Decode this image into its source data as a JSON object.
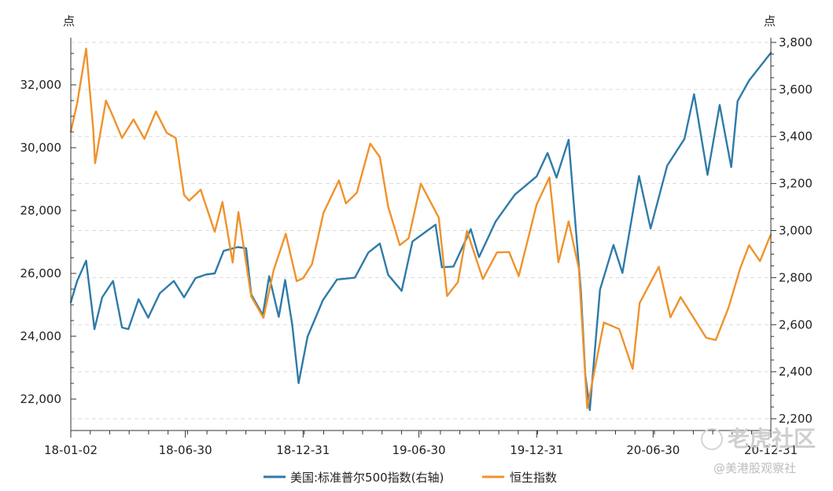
{
  "chart_data": {
    "type": "line",
    "left_axis": {
      "unit": "点",
      "ylim": [
        21000,
        33500
      ],
      "ticks": [
        22000,
        24000,
        26000,
        28000,
        30000,
        32000
      ],
      "tick_labels": [
        "22,000",
        "24,000",
        "26,000",
        "28,000",
        "30,000",
        "32,000"
      ]
    },
    "right_axis": {
      "unit": "点",
      "ylim": [
        2150,
        3820
      ],
      "ticks": [
        2200,
        2400,
        2600,
        2800,
        3000,
        3200,
        3400,
        3600,
        3800
      ],
      "tick_labels": [
        "2,200",
        "2,400",
        "2,600",
        "2,800",
        "3,000",
        "3,200",
        "3,400",
        "3,600",
        "3,800"
      ]
    },
    "x_axis": {
      "range": [
        "2018-01-02",
        "2020-12-31"
      ],
      "ticks": [
        "2018-01-02",
        "2018-06-30",
        "2018-12-31",
        "2019-06-30",
        "2019-12-31",
        "2020-06-30",
        "2020-12-31"
      ],
      "tick_labels": [
        "18-01-02",
        "18-06-30",
        "18-12-31",
        "19-06-30",
        "19-12-31",
        "20-06-30",
        "20-12-31"
      ]
    },
    "grid": "horizontal dashed",
    "legend_position": "bottom",
    "series": [
      {
        "name": "美国:标准普尔500指数(右轴)",
        "axis": "right",
        "color": "#2e7ba8",
        "points": [
          [
            "2018-01-02",
            2695
          ],
          [
            "2018-01-12",
            2786
          ],
          [
            "2018-01-26",
            2872
          ],
          [
            "2018-02-08",
            2581
          ],
          [
            "2018-02-20",
            2716
          ],
          [
            "2018-03-09",
            2786
          ],
          [
            "2018-03-23",
            2588
          ],
          [
            "2018-04-02",
            2581
          ],
          [
            "2018-04-18",
            2708
          ],
          [
            "2018-05-03",
            2630
          ],
          [
            "2018-05-21",
            2733
          ],
          [
            "2018-06-12",
            2786
          ],
          [
            "2018-06-28",
            2716
          ],
          [
            "2018-07-16",
            2798
          ],
          [
            "2018-08-01",
            2813
          ],
          [
            "2018-08-15",
            2818
          ],
          [
            "2018-08-29",
            2914
          ],
          [
            "2018-09-20",
            2930
          ],
          [
            "2018-10-03",
            2925
          ],
          [
            "2018-10-11",
            2728
          ],
          [
            "2018-10-29",
            2641
          ],
          [
            "2018-11-08",
            2806
          ],
          [
            "2018-11-23",
            2633
          ],
          [
            "2018-12-03",
            2790
          ],
          [
            "2018-12-14",
            2600
          ],
          [
            "2018-12-24",
            2351
          ],
          [
            "2019-01-07",
            2549
          ],
          [
            "2019-01-31",
            2704
          ],
          [
            "2019-02-22",
            2792
          ],
          [
            "2019-03-22",
            2800
          ],
          [
            "2019-04-12",
            2907
          ],
          [
            "2019-04-30",
            2945
          ],
          [
            "2019-05-13",
            2812
          ],
          [
            "2019-06-03",
            2744
          ],
          [
            "2019-06-20",
            2954
          ],
          [
            "2019-07-26",
            3025
          ],
          [
            "2019-08-05",
            2844
          ],
          [
            "2019-08-23",
            2847
          ],
          [
            "2019-09-19",
            3006
          ],
          [
            "2019-10-02",
            2887
          ],
          [
            "2019-10-28",
            3039
          ],
          [
            "2019-11-27",
            3153
          ],
          [
            "2019-12-31",
            3230
          ],
          [
            "2020-01-17",
            3330
          ],
          [
            "2020-01-31",
            3225
          ],
          [
            "2020-02-19",
            3386
          ],
          [
            "2020-03-09",
            2746
          ],
          [
            "2020-03-16",
            2386
          ],
          [
            "2020-03-23",
            2237
          ],
          [
            "2020-04-08",
            2749
          ],
          [
            "2020-04-29",
            2939
          ],
          [
            "2020-05-13",
            2820
          ],
          [
            "2020-06-08",
            3232
          ],
          [
            "2020-06-26",
            3009
          ],
          [
            "2020-07-22",
            3276
          ],
          [
            "2020-08-18",
            3390
          ],
          [
            "2020-09-02",
            3580
          ],
          [
            "2020-09-23",
            3237
          ],
          [
            "2020-10-12",
            3534
          ],
          [
            "2020-10-30",
            3270
          ],
          [
            "2020-11-09",
            3550
          ],
          [
            "2020-11-27",
            3638
          ],
          [
            "2020-12-31",
            3756
          ]
        ]
      },
      {
        "name": "恒生指数",
        "axis": "left",
        "color": "#f0922b",
        "points": [
          [
            "2018-01-02",
            30515
          ],
          [
            "2018-01-12",
            31412
          ],
          [
            "2018-01-26",
            33154
          ],
          [
            "2018-02-06",
            30595
          ],
          [
            "2018-02-09",
            29507
          ],
          [
            "2018-02-26",
            31499
          ],
          [
            "2018-03-09",
            30996
          ],
          [
            "2018-03-23",
            30309
          ],
          [
            "2018-04-10",
            30899
          ],
          [
            "2018-04-27",
            30281
          ],
          [
            "2018-05-15",
            31152
          ],
          [
            "2018-06-01",
            30469
          ],
          [
            "2018-06-15",
            30309
          ],
          [
            "2018-06-28",
            28497
          ],
          [
            "2018-07-06",
            28315
          ],
          [
            "2018-07-24",
            28662
          ],
          [
            "2018-08-15",
            27323
          ],
          [
            "2018-08-27",
            28271
          ],
          [
            "2018-09-12",
            26345
          ],
          [
            "2018-09-21",
            27953
          ],
          [
            "2018-10-11",
            25266
          ],
          [
            "2018-10-30",
            24585
          ],
          [
            "2018-11-15",
            26103
          ],
          [
            "2018-12-04",
            27260
          ],
          [
            "2018-12-21",
            25753
          ],
          [
            "2018-12-31",
            25846
          ],
          [
            "2019-01-14",
            26298
          ],
          [
            "2019-02-01",
            27930
          ],
          [
            "2019-02-25",
            28959
          ],
          [
            "2019-03-08",
            28228
          ],
          [
            "2019-03-25",
            28566
          ],
          [
            "2019-04-15",
            30129
          ],
          [
            "2019-04-30",
            29699
          ],
          [
            "2019-05-13",
            28122
          ],
          [
            "2019-05-31",
            26901
          ],
          [
            "2019-06-14",
            27118
          ],
          [
            "2019-07-03",
            28855
          ],
          [
            "2019-07-31",
            27778
          ],
          [
            "2019-08-13",
            25281
          ],
          [
            "2019-08-30",
            25725
          ],
          [
            "2019-09-13",
            27353
          ],
          [
            "2019-10-08",
            25821
          ],
          [
            "2019-10-30",
            26667
          ],
          [
            "2019-11-18",
            26681
          ],
          [
            "2019-12-03",
            25918
          ],
          [
            "2019-12-31",
            28190
          ],
          [
            "2020-01-20",
            29056
          ],
          [
            "2020-02-03",
            26356
          ],
          [
            "2020-02-19",
            27655
          ],
          [
            "2020-03-06",
            26147
          ],
          [
            "2020-03-19",
            21709
          ],
          [
            "2020-04-14",
            24436
          ],
          [
            "2020-05-08",
            24231
          ],
          [
            "2020-05-29",
            22961
          ],
          [
            "2020-06-09",
            25057
          ],
          [
            "2020-07-09",
            26210
          ],
          [
            "2020-07-27",
            24603
          ],
          [
            "2020-08-12",
            25244
          ],
          [
            "2020-09-21",
            23950
          ],
          [
            "2020-10-06",
            23880
          ],
          [
            "2020-10-26",
            24918
          ],
          [
            "2020-11-13",
            26157
          ],
          [
            "2020-11-27",
            26894
          ],
          [
            "2020-12-14",
            26389
          ],
          [
            "2020-12-29",
            27147
          ],
          [
            "2020-12-31",
            27231
          ]
        ]
      }
    ]
  },
  "legend": {
    "series_1": "美国:标准普尔500指数(右轴)",
    "series_2": "恒生指数"
  },
  "watermark": {
    "main": "老虎社区",
    "sub": "@美港股观察社"
  }
}
